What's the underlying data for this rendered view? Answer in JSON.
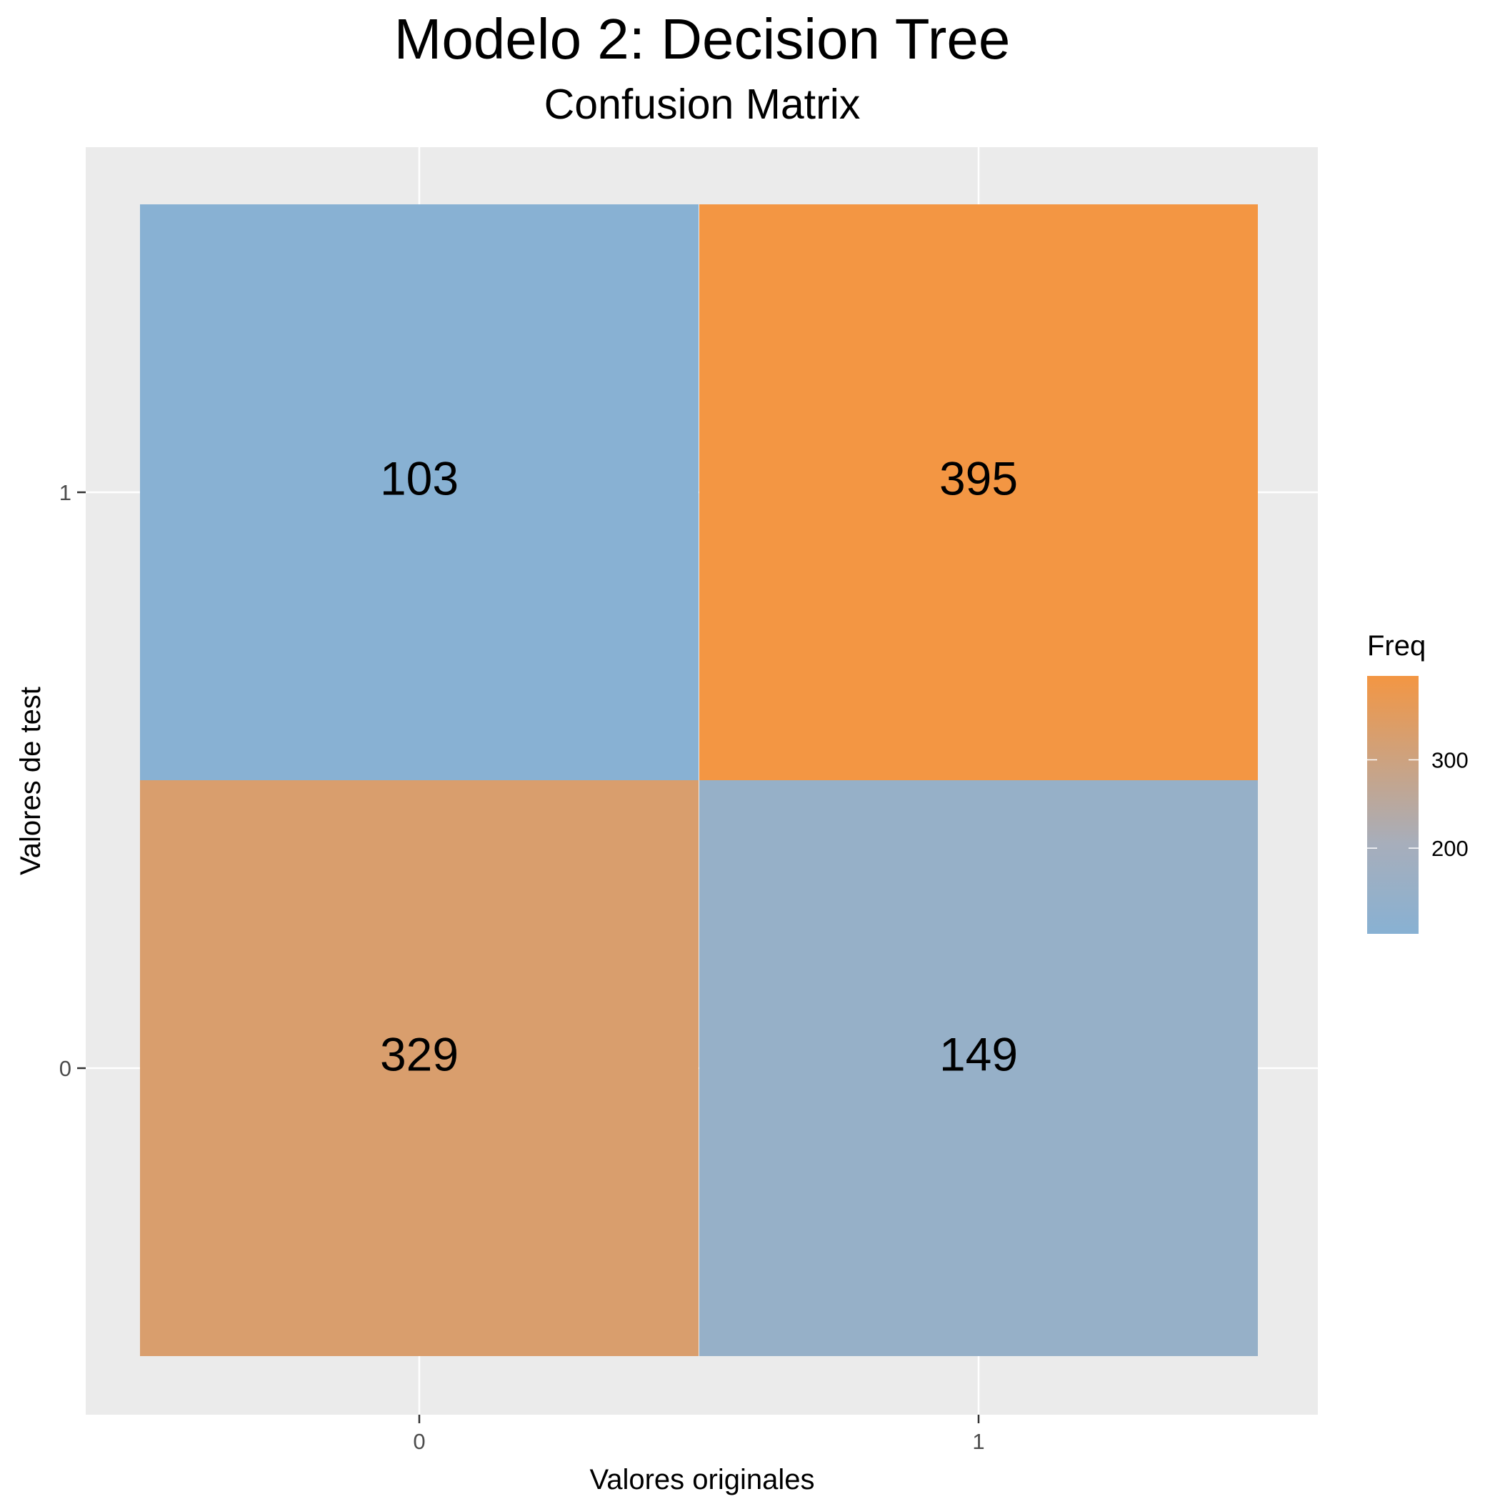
{
  "chart_data": {
    "type": "heatmap",
    "title": "Modelo 2: Decision Tree",
    "subtitle": "Confusion Matrix",
    "xlabel": "Valores originales",
    "ylabel": "Valores de test",
    "x_categories": [
      "0",
      "1"
    ],
    "y_categories": [
      "0",
      "1"
    ],
    "cells": [
      {
        "x": "0",
        "y": "1",
        "value": 103
      },
      {
        "x": "1",
        "y": "1",
        "value": 395
      },
      {
        "x": "0",
        "y": "0",
        "value": 329
      },
      {
        "x": "1",
        "y": "0",
        "value": 149
      }
    ],
    "legend": {
      "title": "Freq",
      "ticks": [
        200,
        300
      ],
      "range": [
        103,
        395
      ],
      "color_low": "#88b1d3",
      "color_mid": "#a7aebb",
      "color_high": "#f39643",
      "placement": "right"
    },
    "colors": {
      "panel_background": "#ebebeb",
      "grid": "#ffffff"
    },
    "grid": true
  }
}
